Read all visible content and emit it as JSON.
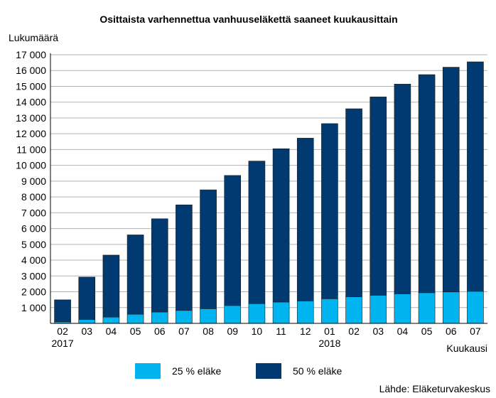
{
  "chart_data": {
    "type": "bar",
    "stacked": true,
    "title": "Osittaista varhennettua vanhuuseläkettä saaneet kuukausittain",
    "ylabel": "Lukumäärä",
    "xlabel": "Kuukausi",
    "source": "Lähde: Eläketurvakeskus",
    "ylim": [
      0,
      17000
    ],
    "yticks": [
      {
        "value": 1000,
        "label": "1 000"
      },
      {
        "value": 2000,
        "label": "2 000"
      },
      {
        "value": 3000,
        "label": "3 000"
      },
      {
        "value": 4000,
        "label": "4 000"
      },
      {
        "value": 5000,
        "label": "5 000"
      },
      {
        "value": 6000,
        "label": "6 000"
      },
      {
        "value": 7000,
        "label": "7 000"
      },
      {
        "value": 8000,
        "label": "8 000"
      },
      {
        "value": 9000,
        "label": "9 000"
      },
      {
        "value": 10000,
        "label": "10 000"
      },
      {
        "value": 11000,
        "label": "11 000"
      },
      {
        "value": 12000,
        "label": "12 000"
      },
      {
        "value": 13000,
        "label": "13 000"
      },
      {
        "value": 14000,
        "label": "14 000"
      },
      {
        "value": 15000,
        "label": "15 000"
      },
      {
        "value": 16000,
        "label": "16 000"
      },
      {
        "value": 17000,
        "label": "17 000"
      }
    ],
    "categories": [
      "02",
      "03",
      "04",
      "05",
      "06",
      "07",
      "08",
      "09",
      "10",
      "11",
      "12",
      "01",
      "02",
      "03",
      "04",
      "05",
      "06",
      "07"
    ],
    "years": [
      {
        "index": 0,
        "label": "2017"
      },
      {
        "index": 11,
        "label": "2018"
      }
    ],
    "series": [
      {
        "name": "25 % eläke",
        "color": "#00b4f0",
        "values": [
          100,
          250,
          400,
          580,
          720,
          820,
          930,
          1130,
          1250,
          1350,
          1420,
          1560,
          1680,
          1780,
          1870,
          1940,
          1990,
          2030
        ]
      },
      {
        "name": "50 % eläke",
        "color": "#003a70",
        "values": [
          1390,
          2680,
          3920,
          5020,
          5900,
          6680,
          7520,
          8230,
          9020,
          9700,
          10300,
          11080,
          11900,
          12550,
          13270,
          13800,
          14220,
          14520
        ]
      }
    ],
    "grid": true,
    "legend_position": "bottom"
  }
}
